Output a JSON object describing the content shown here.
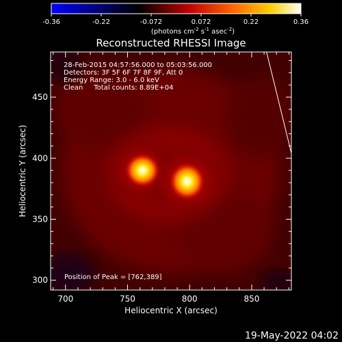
{
  "chart_data": {
    "type": "heatmap",
    "title": "Reconstructed RHESSI Image",
    "xlabel": "Heliocentric X (arcsec)",
    "ylabel": "Heliocentric Y (arcsec)",
    "xlim": [
      688,
      882
    ],
    "ylim": [
      292,
      487
    ],
    "xticks": [
      700,
      750,
      800,
      850
    ],
    "yticks": [
      300,
      350,
      400,
      450
    ],
    "colorbar": {
      "range": [
        -0.36,
        0.36
      ],
      "ticks": [
        "-0.36",
        "-0.22",
        "-0.072",
        "0.072",
        "0.22",
        "0.36"
      ],
      "unit_parts": [
        "(photons cm",
        "-2",
        " s",
        "-1",
        " asec",
        "-2",
        ")"
      ],
      "colormap": [
        "#0000ff",
        "#000000",
        "#c00000",
        "#ff7f00",
        "#ffff80",
        "#ffffff"
      ]
    },
    "annotations": [
      "28-Feb-2015 04:57:56.000 to 05:03:56.000",
      "Detectors: 3F 5F 6F 7F 8F 9F, Att 0",
      "Energy Range: 3.0 - 6.0 keV",
      "Clean     Total counts: 8.89E+04"
    ],
    "peak_label": "Position of Peak = [762,389]",
    "sources": [
      {
        "x": 762,
        "y": 390,
        "peak": 0.36,
        "sigma": 9
      },
      {
        "x": 798,
        "y": 381,
        "peak": 0.33,
        "sigma": 10
      }
    ],
    "limb_line": {
      "x": [
        862,
        882
      ],
      "y": [
        487,
        404
      ]
    }
  },
  "footer": {
    "timestamp": "19-May-2022 04:02"
  }
}
